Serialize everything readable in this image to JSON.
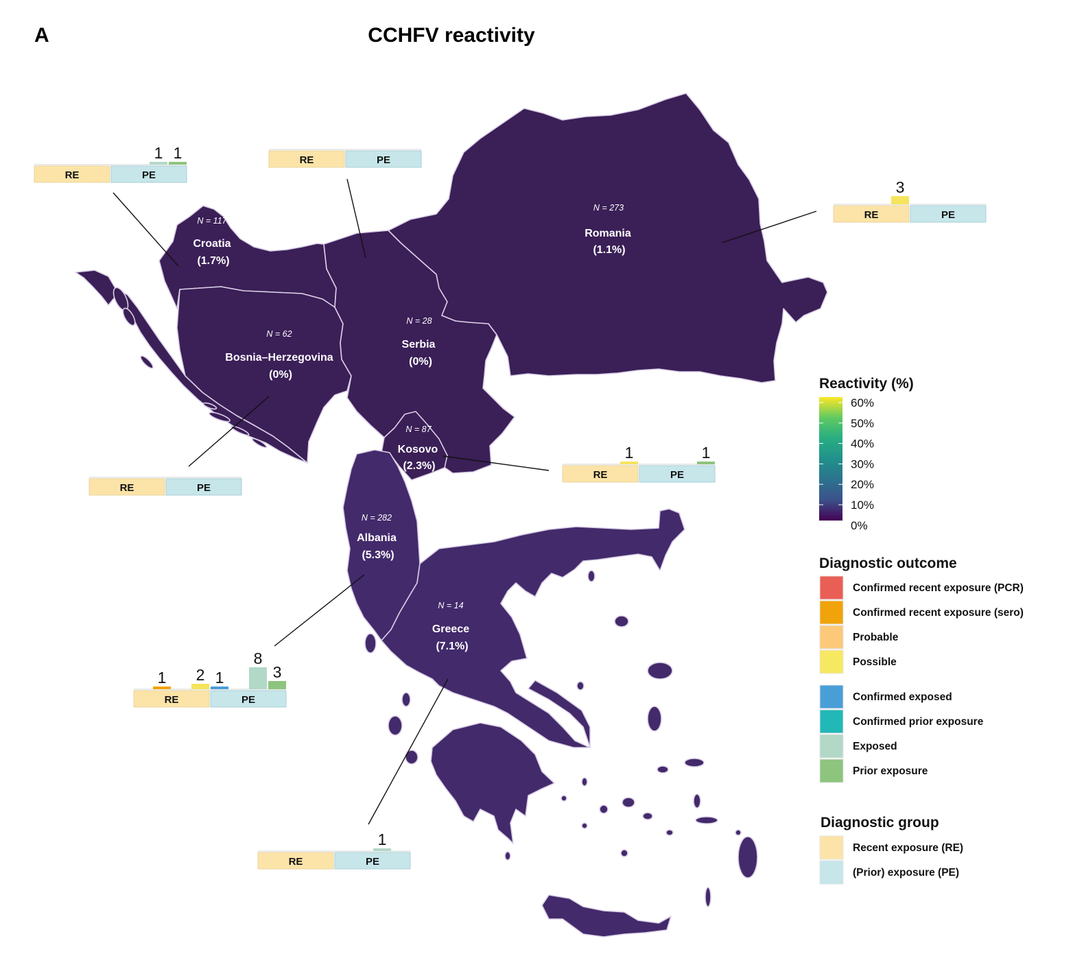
{
  "panel_letter": "A",
  "title": "CCHFV reactivity",
  "colors": {
    "land": "#3b1f57",
    "land_south": "#432a6b",
    "border": "#d9cfe6",
    "re_box": "#fce4a8",
    "pe_box": "#c6e6ea"
  },
  "countries": [
    {
      "key": "croatia",
      "name": "Croatia",
      "pct": "(1.7%)",
      "n": "N = 117"
    },
    {
      "key": "bosnia",
      "name": "Bosnia–Herzegovina",
      "pct": "(0%)",
      "n": "N = 62"
    },
    {
      "key": "serbia",
      "name": "Serbia",
      "pct": "(0%)",
      "n": "N = 28"
    },
    {
      "key": "romania",
      "name": "Romania",
      "pct": "(1.1%)",
      "n": "N = 273"
    },
    {
      "key": "kosovo",
      "name": "Kosovo",
      "pct": "(2.3%)",
      "n": "N = 87"
    },
    {
      "key": "albania",
      "name": "Albania",
      "pct": "(5.3%)",
      "n": "N = 282"
    },
    {
      "key": "greece",
      "name": "Greece",
      "pct": "(7.1%)",
      "n": "N = 14"
    }
  ],
  "insets": [
    {
      "key": "croatia",
      "re_label": "RE",
      "pe_label": "PE",
      "bars": [
        {
          "outcome": "Exposed",
          "count": "1",
          "color": "#b2d8c8"
        },
        {
          "outcome": "Prior exposure",
          "count": "1",
          "color": "#8dc47e"
        }
      ]
    },
    {
      "key": "serbia",
      "re_label": "RE",
      "pe_label": "PE",
      "bars": []
    },
    {
      "key": "romania",
      "re_label": "RE",
      "pe_label": "PE",
      "bars": [
        {
          "outcome": "Possible",
          "count": "3",
          "color": "#f5e45c"
        }
      ]
    },
    {
      "key": "bosnia",
      "re_label": "RE",
      "pe_label": "PE",
      "bars": []
    },
    {
      "key": "kosovo",
      "re_label": "RE",
      "pe_label": "PE",
      "bars": [
        {
          "outcome": "Possible",
          "count": "1",
          "color": "#f5e45c"
        },
        {
          "outcome": "Prior exposure",
          "count": "1",
          "color": "#8dc47e"
        }
      ]
    },
    {
      "key": "albania",
      "re_label": "RE",
      "pe_label": "PE",
      "bars": [
        {
          "outcome": "Confirmed recent exposure (sero)",
          "count": "1",
          "color": "#f0a30a"
        },
        {
          "outcome": "Possible",
          "count": "2",
          "color": "#f5e45c"
        },
        {
          "outcome": "Confirmed exposed",
          "count": "1",
          "color": "#4a9ed8"
        },
        {
          "outcome": "Exposed",
          "count": "8",
          "color": "#b2d8c8"
        },
        {
          "outcome": "Prior exposure",
          "count": "3",
          "color": "#8dc47e"
        }
      ]
    },
    {
      "key": "greece",
      "re_label": "RE",
      "pe_label": "PE",
      "bars": [
        {
          "outcome": "Exposed",
          "count": "1",
          "color": "#b2d8c8"
        }
      ]
    }
  ],
  "legend_reactivity": {
    "title": "Reactivity (%)",
    "ticks": [
      "60%",
      "50%",
      "40%",
      "30%",
      "20%",
      "10%",
      "0%"
    ]
  },
  "legend_outcome": {
    "title": "Diagnostic outcome",
    "items": [
      {
        "label": "Confirmed recent exposure (PCR)",
        "color": "#ea5f55"
      },
      {
        "label": "Confirmed recent exposure (sero)",
        "color": "#f0a30a"
      },
      {
        "label": "Probable",
        "color": "#fcc97a"
      },
      {
        "label": "Possible",
        "color": "#f7e862"
      },
      {
        "label": "Confirmed exposed",
        "color": "#4a9ed8"
      },
      {
        "label": "Confirmed prior exposure",
        "color": "#22b8b8"
      },
      {
        "label": "Exposed",
        "color": "#b2d8c8"
      },
      {
        "label": "Prior exposure",
        "color": "#8dc47e"
      }
    ]
  },
  "legend_group": {
    "title": "Diagnostic group",
    "items": [
      {
        "label": "Recent exposure (RE)",
        "color": "#fce4a8"
      },
      {
        "label": "(Prior) exposure (PE)",
        "color": "#c6e6ea"
      }
    ]
  }
}
